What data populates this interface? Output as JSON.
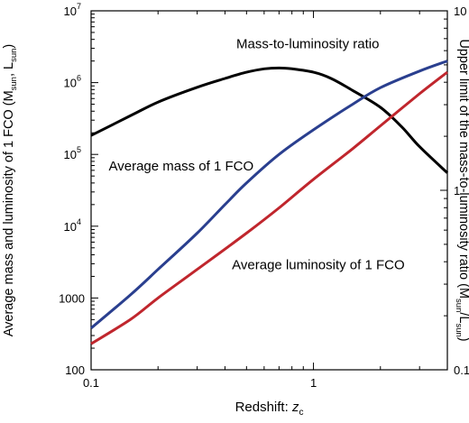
{
  "chart_data": {
    "type": "line",
    "x_axis": {
      "label_main": "Redshift: ",
      "label_var": "z",
      "label_sub": "c",
      "scale": "log",
      "range": [
        0.1,
        4
      ],
      "ticks": [
        {
          "value": 0.1,
          "label": "0.1"
        },
        {
          "value": 1,
          "label": "1"
        }
      ]
    },
    "y_left": {
      "label": {
        "main": "Average mass and luminosity of 1 FCO (M",
        "sub1": "sun",
        "mid": ", L",
        "sub2": "sun",
        "end": ")"
      },
      "scale": "log",
      "range": [
        100,
        10000000
      ],
      "ticks": [
        {
          "value": 100,
          "label": "100",
          "exp": ""
        },
        {
          "value": 1000,
          "label": "1000",
          "exp": ""
        },
        {
          "value": 10000,
          "label": "10",
          "exp": "4"
        },
        {
          "value": 100000,
          "label": "10",
          "exp": "5"
        },
        {
          "value": 1000000,
          "label": "10",
          "exp": "6"
        },
        {
          "value": 10000000,
          "label": "10",
          "exp": "7"
        }
      ]
    },
    "y_right": {
      "label": {
        "main": "Upper limit of the mass-to-luminosity ratio (M",
        "sub1": "sun",
        "mid": "/L",
        "sub2": "sun",
        "end": ")"
      },
      "scale": "log",
      "range": [
        0.1,
        10
      ],
      "ticks": [
        {
          "value": 0.1,
          "label": "0.1"
        },
        {
          "value": 1,
          "label": "1"
        },
        {
          "value": 10,
          "label": "10"
        }
      ]
    },
    "series": [
      {
        "name": "Mass-to-luminosity ratio",
        "axis": "right",
        "color": "#000000",
        "points": [
          [
            0.1,
            2.02
          ],
          [
            0.15,
            2.6
          ],
          [
            0.2,
            3.1
          ],
          [
            0.3,
            3.75
          ],
          [
            0.4,
            4.2
          ],
          [
            0.5,
            4.55
          ],
          [
            0.6,
            4.75
          ],
          [
            0.7,
            4.8
          ],
          [
            0.8,
            4.75
          ],
          [
            1.0,
            4.55
          ],
          [
            1.2,
            4.2
          ],
          [
            1.5,
            3.6
          ],
          [
            2.0,
            2.9
          ],
          [
            2.5,
            2.25
          ],
          [
            3.0,
            1.75
          ],
          [
            4.0,
            1.25
          ]
        ]
      },
      {
        "name": "Average mass of 1 FCO",
        "axis": "left",
        "color": "#2a3f8f",
        "points": [
          [
            0.1,
            380
          ],
          [
            0.15,
            1100
          ],
          [
            0.2,
            2500
          ],
          [
            0.3,
            8000
          ],
          [
            0.4,
            20000
          ],
          [
            0.5,
            40000
          ],
          [
            0.7,
            100000
          ],
          [
            1.0,
            220000
          ],
          [
            1.5,
            500000
          ],
          [
            2.0,
            850000
          ],
          [
            3.0,
            1450000
          ],
          [
            4.0,
            2000000
          ]
        ]
      },
      {
        "name": "Average luminosity of 1 FCO",
        "axis": "left",
        "color": "#c0262d",
        "points": [
          [
            0.1,
            230
          ],
          [
            0.15,
            500
          ],
          [
            0.2,
            1000
          ],
          [
            0.3,
            2500
          ],
          [
            0.5,
            8000
          ],
          [
            0.7,
            18000
          ],
          [
            1.0,
            45000
          ],
          [
            1.5,
            120000
          ],
          [
            2.0,
            250000
          ],
          [
            3.0,
            700000
          ],
          [
            4.0,
            1400000
          ]
        ]
      }
    ],
    "annotations": [
      {
        "text": "Mass-to-luminosity ratio",
        "color": "#000000",
        "at_x": 0.45,
        "at_y_left": 3000000
      },
      {
        "text": "Average mass of 1 FCO",
        "color": "#2a3f8f",
        "at_x": 0.12,
        "at_y_left": 60000
      },
      {
        "text": "Average luminosity of 1 FCO",
        "color": "#c0262d",
        "at_x": 0.43,
        "at_y_left": 2500
      }
    ]
  }
}
